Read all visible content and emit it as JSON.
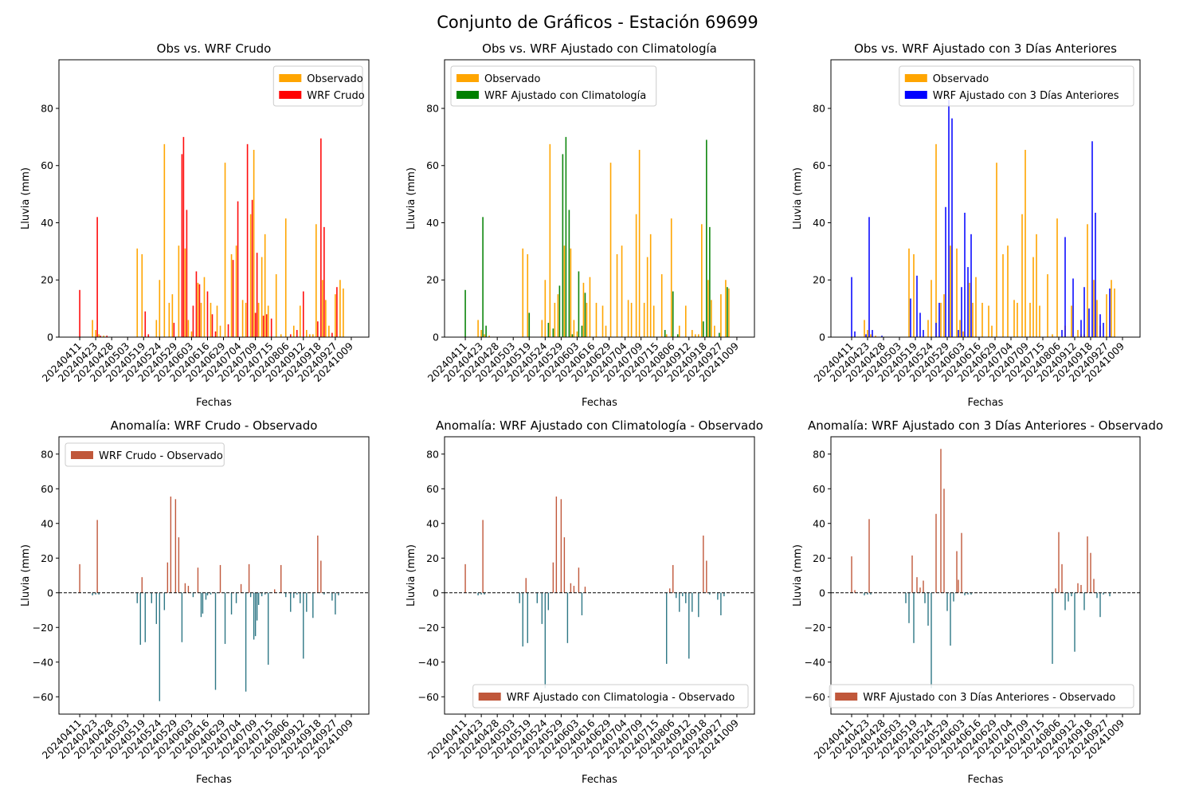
{
  "figure_title": "Conjunto de Gráficos - Estación 69699",
  "colors": {
    "observado": "#FFA500",
    "wrf_crudo": "#FF0000",
    "wrf_clima": "#008000",
    "wrf_3dias": "#0000FF",
    "anom_pos": "#C0573A",
    "anom_neg": "#2E7785"
  },
  "chart_data": [
    {
      "type": "bar",
      "title": "Obs vs. WRF Crudo",
      "xlabel": "Fechas",
      "ylabel": "Lluvia (mm)",
      "ylim": [
        0,
        97
      ],
      "yticks": [
        0,
        20,
        40,
        60,
        80
      ],
      "legend_position": "upper right",
      "x_tick_labels": [
        "20240411",
        "20240423",
        "20240428",
        "20240503",
        "20240519",
        "20240524",
        "20240529",
        "20240603",
        "20240616",
        "20240629",
        "20240704",
        "20240709",
        "20240715",
        "20240806",
        "20240912",
        "20240918",
        "20240927",
        "20241009"
      ],
      "series": [
        {
          "name": "Observado",
          "color_key": "observado",
          "x": [
            1.8,
            2.0,
            2.2,
            2.5,
            4.6,
            4.9,
            5.8,
            6.0,
            6.3,
            6.6,
            6.8,
            7.2,
            7.6,
            7.8,
            8.0,
            8.4,
            8.6,
            8.8,
            9.2,
            9.6,
            9.8,
            10.1,
            10.5,
            10.8,
            11.2,
            11.4,
            11.7,
            11.9,
            12.2,
            12.4,
            12.6,
            12.8,
            13.3,
            13.6,
            13.9,
            14.4,
            14.8,
            15.2,
            15.4,
            15.6,
            15.8,
            16.2,
            16.4,
            16.6,
            17.0,
            17.3,
            17.5
          ],
          "y": [
            6,
            2.5,
            1,
            0.5,
            31,
            29,
            6,
            20,
            67.5,
            12,
            15,
            32,
            31,
            6,
            2,
            19,
            12,
            21,
            12,
            11,
            4,
            61,
            29,
            32,
            13,
            12,
            43,
            65.5,
            12,
            28,
            36,
            11,
            22,
            1,
            41.5,
            4,
            11,
            2.5,
            1,
            1,
            39.5,
            20,
            13,
            4,
            15,
            20,
            17
          ]
        },
        {
          "name": "WRF Crudo",
          "color_key": "wrf_crudo",
          "x": [
            1.0,
            2.1,
            2.3,
            2.7,
            5.1,
            5.3,
            6.9,
            7.4,
            7.5,
            7.7,
            8.1,
            8.3,
            8.5,
            9.0,
            9.3,
            9.5,
            10.3,
            10.6,
            10.9,
            11.5,
            11.8,
            12.0,
            12.1,
            12.5,
            12.7,
            13.0,
            14.2,
            14.6,
            15.0,
            15.9,
            16.1,
            16.3,
            16.8,
            17.1
          ],
          "y": [
            16.5,
            42,
            0.5,
            0.5,
            9,
            1,
            5,
            64,
            70,
            44.5,
            11,
            23,
            18.5,
            16,
            8,
            2,
            4.5,
            27,
            47.5,
            67.5,
            48,
            8.5,
            29.5,
            7.5,
            8,
            6.5,
            1,
            2.5,
            16,
            5.5,
            69.5,
            38.5,
            1.5,
            17.5
          ]
        }
      ]
    },
    {
      "type": "bar",
      "title": "Obs vs. WRF Ajustado con Climatología",
      "xlabel": "Fechas",
      "ylabel": "Lluvia (mm)",
      "ylim": [
        0,
        97
      ],
      "yticks": [
        0,
        20,
        40,
        60,
        80
      ],
      "legend_position": "upper left",
      "x_tick_labels": [
        "20240411",
        "20240423",
        "20240428",
        "20240503",
        "20240519",
        "20240524",
        "20240529",
        "20240603",
        "20240616",
        "20240629",
        "20240704",
        "20240709",
        "20240715",
        "20240806",
        "20240912",
        "20240918",
        "20240927",
        "20241009"
      ],
      "series": [
        {
          "name": "Observado",
          "color_key": "observado",
          "x": [
            1.8,
            2.0,
            2.2,
            2.5,
            4.6,
            4.9,
            5.8,
            6.0,
            6.3,
            6.6,
            6.8,
            7.2,
            7.6,
            7.8,
            8.0,
            8.4,
            8.6,
            8.8,
            9.2,
            9.6,
            9.8,
            10.1,
            10.5,
            10.8,
            11.2,
            11.4,
            11.7,
            11.9,
            12.2,
            12.4,
            12.6,
            12.8,
            13.3,
            13.6,
            13.9,
            14.4,
            14.8,
            15.2,
            15.4,
            15.6,
            15.8,
            16.2,
            16.4,
            16.6,
            17.0,
            17.3,
            17.5
          ],
          "y": [
            6,
            2.5,
            1,
            0.5,
            31,
            29,
            6,
            20,
            67.5,
            12,
            15,
            32,
            31,
            6,
            2,
            19,
            12,
            21,
            12,
            11,
            4,
            61,
            29,
            32,
            13,
            12,
            43,
            65.5,
            12,
            28,
            36,
            11,
            22,
            1,
            41.5,
            4,
            11,
            2.5,
            1,
            1,
            39.5,
            20,
            13,
            4,
            15,
            20,
            17
          ]
        },
        {
          "name": "WRF Ajustado con Climatología",
          "color_key": "wrf_clima",
          "x": [
            1.0,
            2.1,
            2.3,
            5.0,
            6.2,
            6.5,
            6.9,
            7.1,
            7.3,
            7.5,
            7.7,
            8.1,
            8.3,
            8.5,
            13.5,
            14.0,
            14.3,
            15.9,
            16.1,
            16.3,
            16.9,
            17.4
          ],
          "y": [
            16.5,
            42,
            4,
            8.5,
            5,
            3,
            18,
            64,
            70,
            44.5,
            1,
            23,
            4,
            15.5,
            2.5,
            16,
            1,
            5.5,
            69,
            38.5,
            1.5,
            17.5
          ]
        }
      ]
    },
    {
      "type": "bar",
      "title": "Obs vs. WRF Ajustado con 3 Días Anteriores",
      "xlabel": "Fechas",
      "ylabel": "Lluvia (mm)",
      "ylim": [
        0,
        97
      ],
      "yticks": [
        0,
        20,
        40,
        60,
        80
      ],
      "legend_position": "upper right",
      "x_tick_labels": [
        "20240411",
        "20240423",
        "20240428",
        "20240503",
        "20240519",
        "20240524",
        "20240529",
        "20240603",
        "20240616",
        "20240629",
        "20240704",
        "20240709",
        "20240715",
        "20240806",
        "20240912",
        "20240918",
        "20240927",
        "20241009"
      ],
      "series": [
        {
          "name": "Observado",
          "color_key": "observado",
          "x": [
            1.8,
            2.0,
            2.2,
            2.5,
            4.6,
            4.9,
            5.8,
            6.0,
            6.3,
            6.6,
            6.8,
            7.2,
            7.6,
            7.8,
            8.0,
            8.4,
            8.6,
            8.8,
            9.2,
            9.6,
            9.8,
            10.1,
            10.5,
            10.8,
            11.2,
            11.4,
            11.7,
            11.9,
            12.2,
            12.4,
            12.6,
            12.8,
            13.3,
            13.6,
            13.9,
            14.4,
            14.8,
            15.2,
            15.4,
            15.6,
            15.8,
            16.2,
            16.4,
            16.6,
            17.0,
            17.3,
            17.5
          ],
          "y": [
            6,
            2.5,
            1,
            0.5,
            31,
            29,
            6,
            20,
            67.5,
            12,
            15,
            32,
            31,
            6,
            2,
            19,
            12,
            21,
            12,
            11,
            4,
            61,
            29,
            32,
            13,
            12,
            43,
            65.5,
            12,
            28,
            36,
            11,
            22,
            1,
            41.5,
            4,
            11,
            2.5,
            1,
            1,
            39.5,
            20,
            13,
            4,
            15,
            20,
            17
          ]
        },
        {
          "name": "WRF Ajustado con 3 Días Anteriores",
          "color_key": "wrf_3dias",
          "x": [
            1.0,
            1.2,
            1.9,
            2.1,
            2.3,
            2.9,
            4.7,
            5.1,
            5.3,
            5.5,
            6.3,
            6.5,
            6.9,
            7.1,
            7.3,
            7.7,
            7.9,
            8.1,
            8.3,
            8.5,
            14.2,
            14.4,
            14.9,
            15.4,
            15.6,
            15.9,
            16.1,
            16.3,
            16.6,
            16.8,
            17.2
          ],
          "y": [
            21,
            2,
            1,
            42,
            2.5,
            0.5,
            13.5,
            21.5,
            8.5,
            2.5,
            5,
            12,
            45.5,
            83,
            76.5,
            2.5,
            17.5,
            43.5,
            24.5,
            36,
            2.5,
            35,
            20.5,
            6,
            17.5,
            10,
            68.5,
            43.5,
            8,
            5,
            17
          ]
        }
      ]
    },
    {
      "type": "bar",
      "title": "Anomalía: WRF Crudo - Observado",
      "xlabel": "Fechas",
      "ylabel": "Lluvia (mm)",
      "ylim": [
        -70,
        90
      ],
      "yticks": [
        -60,
        -40,
        -20,
        0,
        20,
        40,
        60,
        80
      ],
      "legend_position": "upper left",
      "legend": "WRF Crudo - Observado",
      "reference_line": 0,
      "x_tick_labels": [
        "20240411",
        "20240423",
        "20240428",
        "20240503",
        "20240519",
        "20240524",
        "20240529",
        "20240603",
        "20240616",
        "20240629",
        "20240704",
        "20240709",
        "20240715",
        "20240806",
        "20240912",
        "20240918",
        "20240927",
        "20241009"
      ],
      "series": [
        {
          "name": "WRF Crudo - Observado",
          "x": [
            1.0,
            1.8,
            2.0,
            2.1,
            2.2,
            4.6,
            4.8,
            4.9,
            5.1,
            5.5,
            5.8,
            6.0,
            6.3,
            6.5,
            6.7,
            7.0,
            7.2,
            7.4,
            7.6,
            7.8,
            8.1,
            8.4,
            8.6,
            8.7,
            8.9,
            9.0,
            9.2,
            9.5,
            9.8,
            10.1,
            10.5,
            10.8,
            11.1,
            11.4,
            11.6,
            11.7,
            11.9,
            12.0,
            12.1,
            12.2,
            12.4,
            12.6,
            12.8,
            13.2,
            13.6,
            13.9,
            14.2,
            14.4,
            14.6,
            14.8,
            15.0,
            15.2,
            15.6,
            15.9,
            16.1,
            16.3,
            16.8,
            17.0,
            17.2
          ],
          "y": [
            16.5,
            -1.5,
            -1,
            42,
            -1,
            -6,
            -30,
            9,
            -28.5,
            -6,
            -18,
            -62.5,
            -10,
            17.5,
            55.5,
            54,
            32,
            -28.5,
            5.5,
            4,
            -2.5,
            14.5,
            -14,
            -12,
            -4,
            -1.5,
            -1,
            -56,
            16,
            -29.5,
            -12.5,
            -6,
            5,
            -57,
            16.5,
            -2.5,
            -27,
            -25,
            -16,
            -7,
            -2,
            -1,
            -41.5,
            2,
            16,
            -2.5,
            -11,
            -3,
            -1,
            -6,
            -38,
            -11,
            -14.5,
            33,
            18.5,
            -1,
            -4.5,
            -12.5,
            -1.5
          ]
        }
      ]
    },
    {
      "type": "bar",
      "title": "Anomalía: WRF Ajustado con Climatología - Observado",
      "xlabel": "Fechas",
      "ylabel": "Lluvia (mm)",
      "ylim": [
        -70,
        90
      ],
      "yticks": [
        -60,
        -40,
        -20,
        0,
        20,
        40,
        60,
        80
      ],
      "legend_position": "lower right",
      "legend": "WRF Ajustado con Climatologia - Observado",
      "reference_line": 0,
      "x_tick_labels": [
        "20240411",
        "20240423",
        "20240428",
        "20240503",
        "20240519",
        "20240524",
        "20240529",
        "20240603",
        "20240616",
        "20240629",
        "20240704",
        "20240709",
        "20240715",
        "20240806",
        "20240912",
        "20240918",
        "20240927",
        "20241009"
      ],
      "series": [
        {
          "name": "WRF Ajustado con Climatologia - Observado",
          "x": [
            1.0,
            1.8,
            2.0,
            2.1,
            2.2,
            4.4,
            4.6,
            4.8,
            4.9,
            5.5,
            5.8,
            6.0,
            6.2,
            6.5,
            6.7,
            7.0,
            7.2,
            7.4,
            7.6,
            7.8,
            8.1,
            8.3,
            8.5,
            13.6,
            13.8,
            14.0,
            14.2,
            14.4,
            14.6,
            14.8,
            15.0,
            15.2,
            15.6,
            15.9,
            16.1,
            16.3,
            16.8,
            17.0,
            17.2
          ],
          "y": [
            16.5,
            -1.5,
            -1,
            42,
            -1,
            -6,
            -31,
            8.5,
            -29,
            -6,
            -18,
            -55,
            -10,
            17.5,
            55.5,
            54,
            32,
            -29,
            5.5,
            4,
            14.5,
            -13,
            3.5,
            -41,
            2.5,
            16,
            -3,
            -11,
            -2,
            -6,
            -38,
            -11,
            -14,
            33,
            18.5,
            -1,
            -4,
            -13,
            -2
          ]
        }
      ]
    },
    {
      "type": "bar",
      "title": "Anomalía: WRF Ajustado con 3 Días Anteriores - Observado",
      "xlabel": "Fechas",
      "ylabel": "Lluvia (mm)",
      "ylim": [
        -70,
        90
      ],
      "yticks": [
        -60,
        -40,
        -20,
        0,
        20,
        40,
        60,
        80
      ],
      "legend_position": "lower right",
      "legend": "WRF Ajustado con 3 Días Anteriores - Observado",
      "reference_line": 0,
      "x_tick_labels": [
        "20240411",
        "20240423",
        "20240428",
        "20240503",
        "20240519",
        "20240524",
        "20240529",
        "20240603",
        "20240616",
        "20240629",
        "20240704",
        "20240709",
        "20240715",
        "20240806",
        "20240912",
        "20240918",
        "20240927",
        "20241009"
      ],
      "series": [
        {
          "name": "WRF Ajustado con 3 Días Anteriores - Observado",
          "x": [
            1.0,
            1.2,
            1.8,
            2.0,
            2.1,
            2.2,
            4.4,
            4.6,
            4.8,
            4.9,
            5.1,
            5.3,
            5.5,
            5.6,
            5.8,
            6.0,
            6.3,
            6.6,
            6.8,
            7.0,
            7.2,
            7.4,
            7.6,
            7.7,
            7.9,
            8.1,
            8.3,
            8.5,
            13.6,
            13.8,
            14.0,
            14.2,
            14.4,
            14.6,
            14.8,
            15.0,
            15.2,
            15.4,
            15.6,
            15.8,
            16.0,
            16.2,
            16.4,
            16.6,
            16.8,
            17.2
          ],
          "y": [
            21,
            1.5,
            -1.5,
            -1,
            42.5,
            -1,
            -6,
            -17.5,
            21.5,
            -29,
            9,
            3,
            7,
            -6,
            -19,
            -55,
            45.5,
            83,
            60,
            -10.5,
            -30.5,
            -5,
            24,
            7.5,
            34.5,
            -1.5,
            -1,
            -1,
            -41,
            2.5,
            35,
            16.5,
            -10,
            -5,
            -2,
            -34,
            5.5,
            4.5,
            -10,
            32.5,
            23,
            8,
            -3,
            -14,
            -1,
            -2
          ]
        }
      ]
    }
  ]
}
